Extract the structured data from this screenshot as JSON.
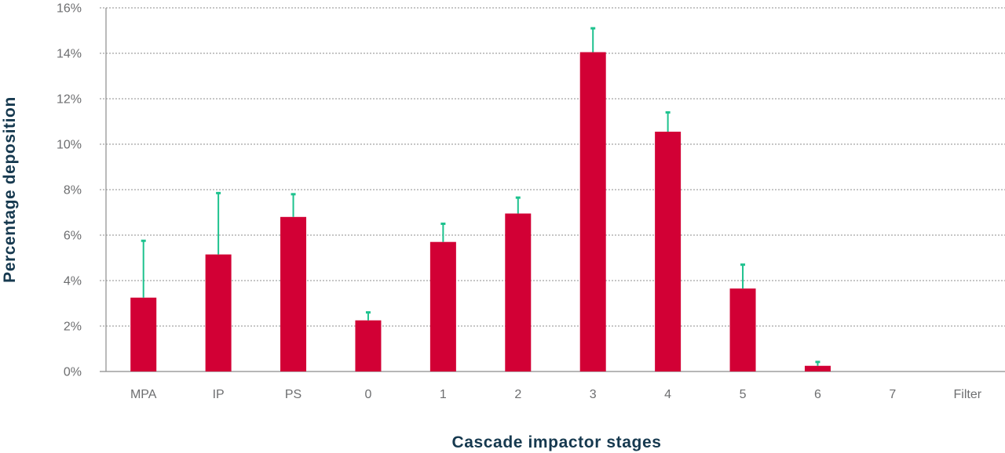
{
  "chart_data": {
    "type": "bar",
    "title": "",
    "xlabel": "Cascade impactor stages",
    "ylabel": "Percentage deposition",
    "categories": [
      "MPA",
      "IP",
      "PS",
      "0",
      "1",
      "2",
      "3",
      "4",
      "5",
      "6",
      "7",
      "Filter"
    ],
    "values": [
      3.25,
      5.15,
      6.8,
      2.25,
      5.7,
      6.95,
      14.05,
      10.55,
      3.65,
      0.25,
      0,
      0
    ],
    "error_upper": [
      5.75,
      7.85,
      7.8,
      2.6,
      6.5,
      7.65,
      15.1,
      11.4,
      4.7,
      0.42,
      null,
      null
    ],
    "ylim": [
      0,
      16
    ],
    "yticks": [
      0,
      2,
      4,
      6,
      8,
      10,
      12,
      14,
      16
    ],
    "ytick_labels": [
      "0%",
      "2%",
      "4%",
      "6%",
      "8%",
      "10%",
      "12%",
      "14%",
      "16%"
    ],
    "grid": true,
    "legend": "none",
    "colors": {
      "bar": "#d20035",
      "error_bar": "#1ec28e",
      "grid": "#8c8c8c",
      "axis": "#8c8c8c",
      "tick_label": "#6d6e70",
      "axis_title": "#16394f"
    }
  }
}
